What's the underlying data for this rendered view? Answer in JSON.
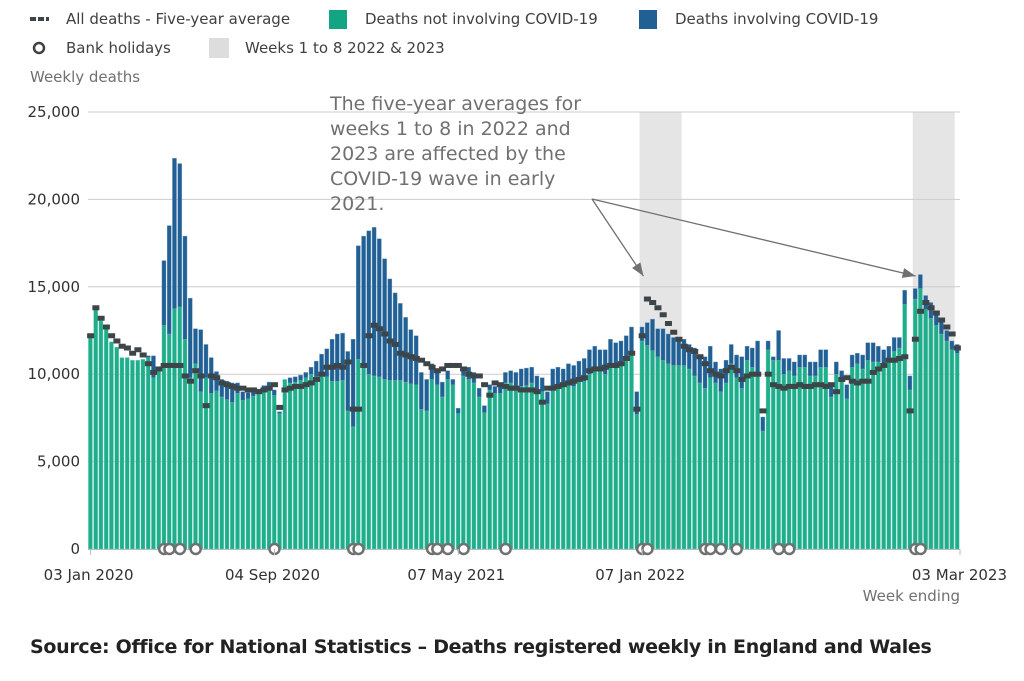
{
  "legend": {
    "avg_label": "All deaths - Five-year average",
    "noncovid_label": "Deaths not involving COVID-19",
    "covid_label": "Deaths involving COVID-19",
    "bank_label": "Bank holidays",
    "weeks_label": "Weeks 1 to 8 2022 & 2023"
  },
  "colors": {
    "noncovid": "#1fae8c",
    "covid": "#206095",
    "average": "#3d4548",
    "shade": "#e5e5e5",
    "gridline": "#cccccc",
    "bank_holiday": "#707071"
  },
  "source": "Source: Office for National Statistics – Deaths registered weekly in England and Wales",
  "chart_data": {
    "type": "bar",
    "stacked": true,
    "title": "",
    "ylabel": "Weekly deaths",
    "xlabel": "Week ending",
    "ylim": [
      0,
      25000
    ],
    "yticks": [
      0,
      5000,
      10000,
      15000,
      20000,
      25000
    ],
    "ytick_labels": [
      "0",
      "5,000",
      "10,000",
      "15,000",
      "20,000",
      "25,000"
    ],
    "x_start": "03 Jan 2020",
    "x_end": "03 Mar 2023",
    "xtick_labels": [
      {
        "label": "03 Jan 2020",
        "week_index": 0
      },
      {
        "label": "04 Sep 2020",
        "week_index": 35
      },
      {
        "label": "07 May 2021",
        "week_index": 70
      },
      {
        "label": "07 Jan 2022",
        "week_index": 105
      },
      {
        "label": "03 Mar 2023",
        "week_index": 165
      }
    ],
    "grid": true,
    "legend_position": "top-left",
    "shaded_ranges": [
      {
        "label": "Weeks 1 to 8 2022",
        "start_index": 105,
        "end_index": 112
      },
      {
        "label": "Weeks 1 to 8 2023",
        "start_index": 157,
        "end_index": 164
      }
    ],
    "annotation": {
      "text": "The five-year averages for weeks 1 to 8 in 2022 and 2023 are affected by the COVID-19 wave in early 2021.",
      "arrows_to_week_index": [
        106,
        158
      ]
    },
    "bank_holiday_week_indices": [
      14,
      15,
      17,
      20,
      35,
      50,
      51,
      65,
      66,
      68,
      71,
      79,
      105,
      106,
      117,
      118,
      120,
      123,
      131,
      133,
      157,
      158
    ],
    "series": [
      {
        "name": "Deaths not involving COVID-19",
        "values": [
          12250,
          13900,
          13050,
          12650,
          11850,
          11550,
          10950,
          10950,
          10800,
          10800,
          10850,
          10950,
          9800,
          10350,
          12800,
          12300,
          13750,
          13850,
          12000,
          9800,
          10600,
          9000,
          9800,
          8900,
          9050,
          8700,
          8550,
          8400,
          8900,
          8500,
          8600,
          8750,
          8950,
          9100,
          9150,
          8800,
          7750,
          9700,
          9500,
          9550,
          9650,
          9800,
          10000,
          9850,
          9900,
          9850,
          9600,
          9600,
          9650,
          7900,
          7000,
          10850,
          10400,
          10000,
          9900,
          9850,
          9700,
          9650,
          9650,
          9650,
          9550,
          9450,
          9400,
          8000,
          7900,
          9700,
          9400,
          8700,
          9700,
          9400,
          7750,
          9900,
          9700,
          9500,
          8700,
          7800,
          9100,
          8900,
          8900,
          9500,
          9500,
          9300,
          9300,
          9350,
          9500,
          9100,
          9000,
          8300,
          9300,
          9300,
          9300,
          9400,
          9300,
          9550,
          9600,
          10000,
          10300,
          10300,
          10000,
          10500,
          10600,
          10600,
          10900,
          11300,
          7700,
          11900,
          11650,
          11350,
          11000,
          10800,
          10600,
          10500,
          10500,
          10500,
          10300,
          9900,
          9500,
          9200,
          9800,
          9500,
          9000,
          9500,
          10600,
          9800,
          9200,
          10800,
          10400,
          10100,
          6750,
          11400,
          10800,
          10800,
          10000,
          10200,
          9900,
          10400,
          10400,
          9900,
          9900,
          10400,
          10400,
          8700,
          10000,
          9700,
          8600,
          10400,
          10600,
          10300,
          10800,
          10700,
          10700,
          10600,
          10900,
          11300,
          11500,
          14000,
          9100,
          14300,
          14900,
          13700,
          13200,
          12800,
          12300,
          11900,
          11400,
          11200
        ]
      },
      {
        "name": "Deaths involving COVID-19",
        "values": [
          0,
          0,
          0,
          0,
          0,
          0,
          0,
          0,
          0,
          0,
          0,
          100,
          1250,
          0,
          3700,
          6200,
          8600,
          8200,
          5900,
          4550,
          2000,
          3550,
          1900,
          2050,
          1100,
          1000,
          1050,
          1100,
          600,
          500,
          350,
          300,
          200,
          250,
          400,
          300,
          100,
          0,
          300,
          300,
          300,
          300,
          400,
          900,
          1250,
          1600,
          2400,
          2700,
          2700,
          3400,
          5000,
          6500,
          7500,
          8200,
          8500,
          7900,
          6900,
          5800,
          5000,
          4400,
          3700,
          3100,
          2800,
          2100,
          1800,
          900,
          700,
          850,
          500,
          300,
          300,
          400,
          700,
          600,
          500,
          400,
          300,
          400,
          500,
          600,
          700,
          800,
          1000,
          1000,
          900,
          800,
          800,
          700,
          1000,
          1100,
          1000,
          1200,
          1200,
          1200,
          1300,
          1400,
          1300,
          1100,
          1400,
          1500,
          1200,
          1300,
          1300,
          1400,
          1300,
          800,
          1300,
          1800,
          1600,
          1800,
          1700,
          1600,
          1600,
          1500,
          1400,
          1600,
          1500,
          1800,
          1800,
          1200,
          1300,
          1300,
          1100,
          1300,
          1800,
          800,
          1100,
          1800,
          800,
          500,
          200,
          1700,
          900,
          700,
          800,
          700,
          700,
          800,
          800,
          1000,
          1000,
          800,
          700,
          500,
          800,
          700,
          600,
          800,
          1000,
          1100,
          900,
          800,
          700,
          800,
          600,
          800,
          800,
          600,
          800,
          800,
          900,
          700,
          700,
          600,
          500,
          500,
          600,
          600
        ]
      },
      {
        "name": "All deaths - Five-year average",
        "type": "line",
        "values": [
          12200,
          13800,
          13200,
          12700,
          12200,
          11900,
          11600,
          11500,
          11200,
          11400,
          11100,
          10600,
          10100,
          10300,
          10500,
          10500,
          10500,
          10500,
          9900,
          9600,
          10200,
          9900,
          8200,
          9900,
          9800,
          9500,
          9400,
          9300,
          9200,
          9200,
          9100,
          9100,
          9000,
          9100,
          9200,
          9400,
          8100,
          9100,
          9200,
          9300,
          9300,
          9400,
          9500,
          9700,
          10000,
          10400,
          10400,
          10500,
          10400,
          10700,
          8000,
          8000,
          10500,
          12200,
          12800,
          12600,
          12300,
          11900,
          11700,
          11200,
          11100,
          11000,
          10900,
          10800,
          10600,
          10400,
          10200,
          10300,
          10500,
          10500,
          10500,
          10300,
          10000,
          9900,
          9900,
          9400,
          8800,
          9500,
          9400,
          9300,
          9200,
          9200,
          9100,
          9100,
          9100,
          9000,
          8400,
          9200,
          9200,
          9300,
          9400,
          9500,
          9600,
          9700,
          9800,
          10200,
          10300,
          10300,
          10400,
          10500,
          10500,
          10600,
          10900,
          11200,
          8000,
          12200,
          14300,
          14100,
          13800,
          13400,
          12900,
          12400,
          12000,
          11600,
          11400,
          11300,
          11000,
          10600,
          10200,
          10000,
          9900,
          10200,
          10400,
          10200,
          9700,
          9900,
          10000,
          10000,
          7900,
          10000,
          9400,
          9300,
          9200,
          9300,
          9300,
          9400,
          9300,
          9300,
          9400,
          9400,
          9300,
          9400,
          9000,
          9700,
          9800,
          9600,
          9500,
          9600,
          9600,
          10100,
          10300,
          10500,
          10800,
          10800,
          10900,
          11000,
          7900,
          12000,
          13600,
          14100,
          13800,
          13500,
          13100,
          12700,
          12300,
          11500
        ]
      }
    ]
  }
}
